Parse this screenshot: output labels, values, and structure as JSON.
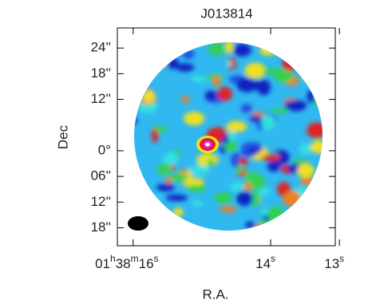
{
  "chart_data": {
    "type": "image",
    "title": "J013814",
    "x_label": "R.A.",
    "y_label": "Dec",
    "xlim": [
      16.23,
      13.06
    ],
    "ylim": [
      28.7,
      -22.2
    ],
    "xticks": [
      {
        "value": 16,
        "label": [
          "01",
          "h",
          "38",
          "m",
          "16",
          "s"
        ]
      },
      {
        "value": 14,
        "label": [
          "14",
          "s"
        ]
      },
      {
        "value": 13,
        "label": [
          "13",
          "s"
        ]
      }
    ],
    "yticks": [
      {
        "value": 24,
        "label": "24''"
      },
      {
        "value": 18,
        "label": "18''"
      },
      {
        "value": 12,
        "label": "12''"
      },
      {
        "value": 0,
        "label": "0°"
      },
      {
        "value": -6,
        "label": "06''"
      },
      {
        "value": -12,
        "label": "12''"
      },
      {
        "value": -18,
        "label": "18''"
      }
    ]
  }
}
